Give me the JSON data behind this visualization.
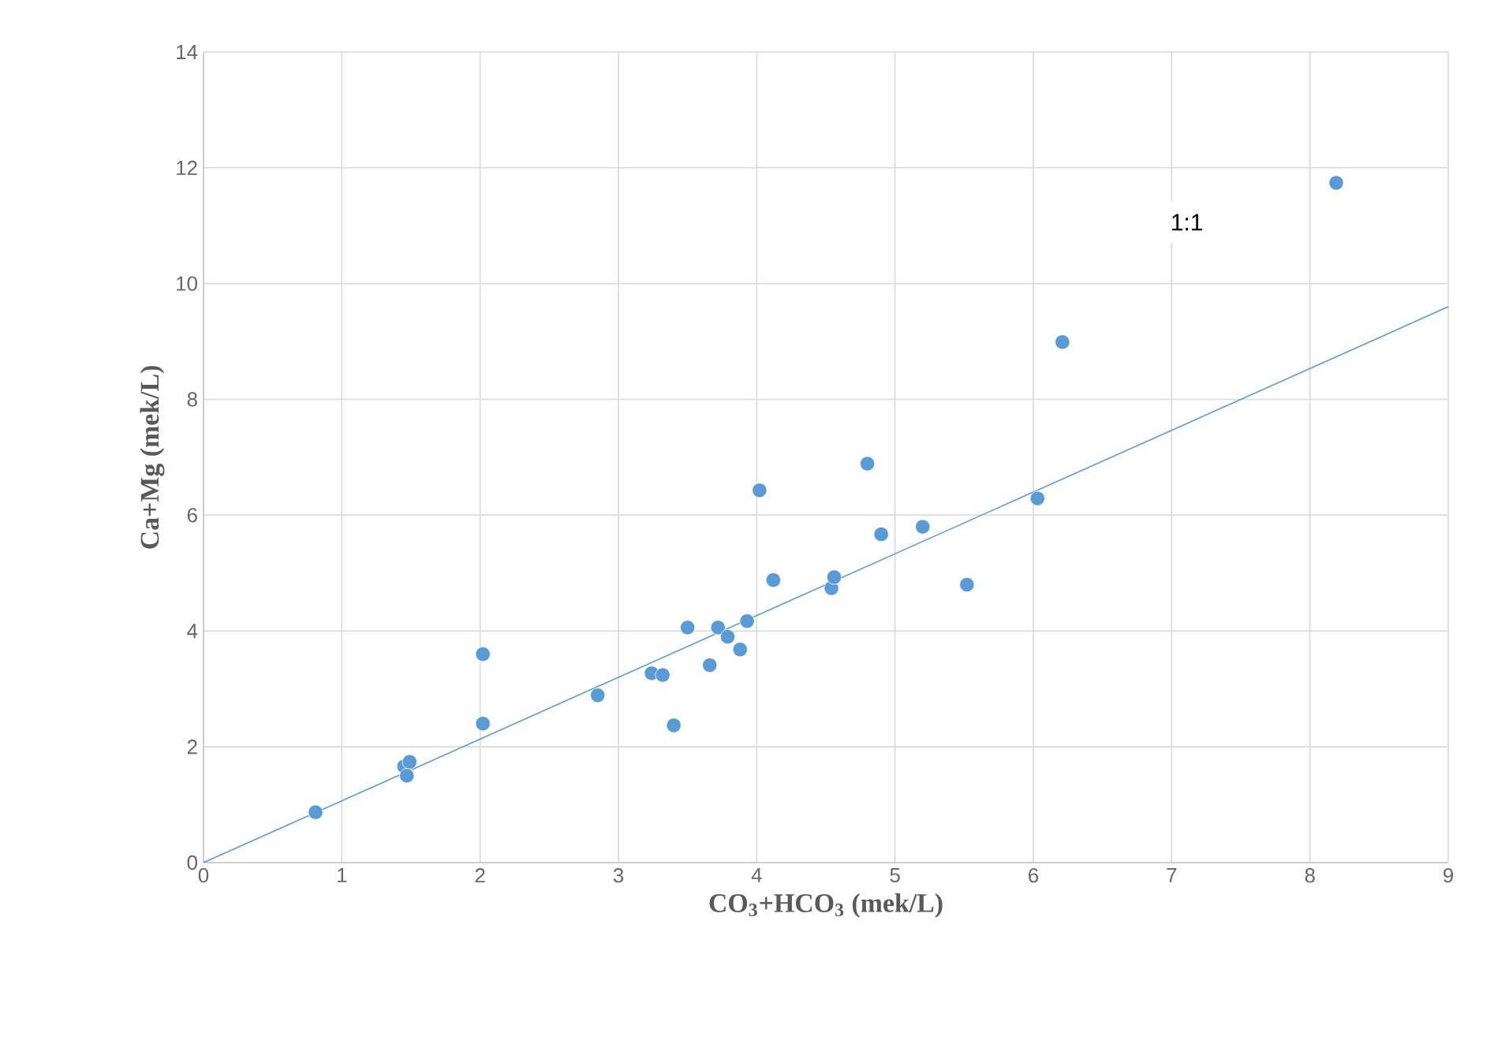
{
  "chart_data": {
    "type": "scatter",
    "xlabel": "CO$_{3}$+HCO$_{3}$ (mek/L)",
    "ylabel": "Ca+Mg (mek/L)",
    "xlim": [
      0,
      9
    ],
    "ylim": [
      0,
      14
    ],
    "xticks": [
      0,
      1,
      2,
      3,
      4,
      5,
      6,
      7,
      8,
      9
    ],
    "yticks": [
      0,
      2,
      4,
      6,
      8,
      10,
      12,
      14
    ],
    "grid": true,
    "annotations": [
      "1:1"
    ],
    "series": [
      {
        "marker": "circle",
        "color": "#5b9bd5",
        "x": [
          0.81,
          1.45,
          1.49,
          1.47,
          2.02,
          2.02,
          2.85,
          3.24,
          3.32,
          3.4,
          3.5,
          3.66,
          3.72,
          3.79,
          3.88,
          3.93,
          4.02,
          4.12,
          4.54,
          4.56,
          4.8,
          4.9,
          5.2,
          5.52,
          6.03,
          6.21,
          8.19
        ],
        "values": [
          0.87,
          1.66,
          1.74,
          1.5,
          3.6,
          2.4,
          2.89,
          3.27,
          3.24,
          2.37,
          4.06,
          3.41,
          4.06,
          3.9,
          3.68,
          4.17,
          6.43,
          4.88,
          4.74,
          4.93,
          6.89,
          5.67,
          5.8,
          4.8,
          6.29,
          8.99,
          11.74
        ]
      },
      {
        "type": "line",
        "marker": "none",
        "color": "#5b9bd5",
        "x": [
          0,
          9
        ],
        "values": [
          0,
          9.6
        ]
      }
    ]
  }
}
